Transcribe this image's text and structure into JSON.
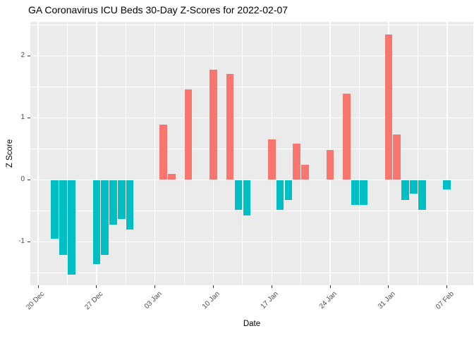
{
  "chart_data": {
    "type": "bar",
    "title": "GA Coronavirus ICU Beds 30-Day Z-Scores for 2022-02-07",
    "xlabel": "Date",
    "ylabel": "Z Score",
    "x_tick_labels": [
      "20 Dec",
      "27 Dec",
      "03 Jan",
      "10 Jan",
      "17 Jan",
      "24 Jan",
      "31 Jan",
      "07 Feb"
    ],
    "x_tick_days": [
      0,
      7,
      14,
      21,
      28,
      35,
      42,
      49
    ],
    "x_minor_days": [
      3.5,
      10.5,
      17.5,
      24.5,
      31.5,
      38.5,
      45.5
    ],
    "y_ticks": [
      2,
      1,
      0,
      -1
    ],
    "y_tick_labels": [
      "2",
      "1",
      "0",
      "-1"
    ],
    "y_minor": [
      2.5,
      1.5,
      0.5,
      -0.5,
      -1.5
    ],
    "ylim": [
      -1.7,
      2.55
    ],
    "grid": true,
    "legend": false,
    "colors": {
      "positive": "#F8766D",
      "negative": "#00BFC4",
      "panel_bg": "#EBEBEB",
      "grid": "#FFFFFF",
      "tick_label": "#4D4D4D",
      "tick_mark": "#333333",
      "title": "#000000"
    },
    "bars": [
      {
        "date": "22 Dec",
        "day": 2,
        "value": -0.95
      },
      {
        "date": "23 Dec",
        "day": 3,
        "value": -1.21
      },
      {
        "date": "24 Dec",
        "day": 4,
        "value": -1.53
      },
      {
        "date": "27 Dec",
        "day": 7,
        "value": -1.36
      },
      {
        "date": "28 Dec",
        "day": 8,
        "value": -1.21
      },
      {
        "date": "29 Dec",
        "day": 9,
        "value": -0.72
      },
      {
        "date": "30 Dec",
        "day": 10,
        "value": -0.63
      },
      {
        "date": "31 Dec",
        "day": 11,
        "value": -0.8
      },
      {
        "date": "04 Jan",
        "day": 15,
        "value": 0.89
      },
      {
        "date": "05 Jan",
        "day": 16,
        "value": 0.1
      },
      {
        "date": "07 Jan",
        "day": 18,
        "value": 1.46
      },
      {
        "date": "10 Jan",
        "day": 21,
        "value": 1.78
      },
      {
        "date": "12 Jan",
        "day": 23,
        "value": 1.71
      },
      {
        "date": "13 Jan",
        "day": 24,
        "value": -0.48
      },
      {
        "date": "14 Jan",
        "day": 25,
        "value": -0.57
      },
      {
        "date": "17 Jan",
        "day": 28,
        "value": 0.65
      },
      {
        "date": "18 Jan",
        "day": 29,
        "value": -0.48
      },
      {
        "date": "19 Jan",
        "day": 30,
        "value": -0.32
      },
      {
        "date": "20 Jan",
        "day": 31,
        "value": 0.58
      },
      {
        "date": "21 Jan",
        "day": 32,
        "value": 0.24
      },
      {
        "date": "24 Jan",
        "day": 35,
        "value": 0.48
      },
      {
        "date": "26 Jan",
        "day": 37,
        "value": 1.39
      },
      {
        "date": "27 Jan",
        "day": 38,
        "value": -0.4
      },
      {
        "date": "28 Jan",
        "day": 39,
        "value": -0.4
      },
      {
        "date": "31 Jan",
        "day": 42,
        "value": 2.35
      },
      {
        "date": "01 Feb",
        "day": 43,
        "value": 0.73
      },
      {
        "date": "02 Feb",
        "day": 44,
        "value": -0.32
      },
      {
        "date": "03 Feb",
        "day": 45,
        "value": -0.22
      },
      {
        "date": "04 Feb",
        "day": 46,
        "value": -0.48
      },
      {
        "date": "07 Feb",
        "day": 49,
        "value": -0.15
      }
    ]
  }
}
